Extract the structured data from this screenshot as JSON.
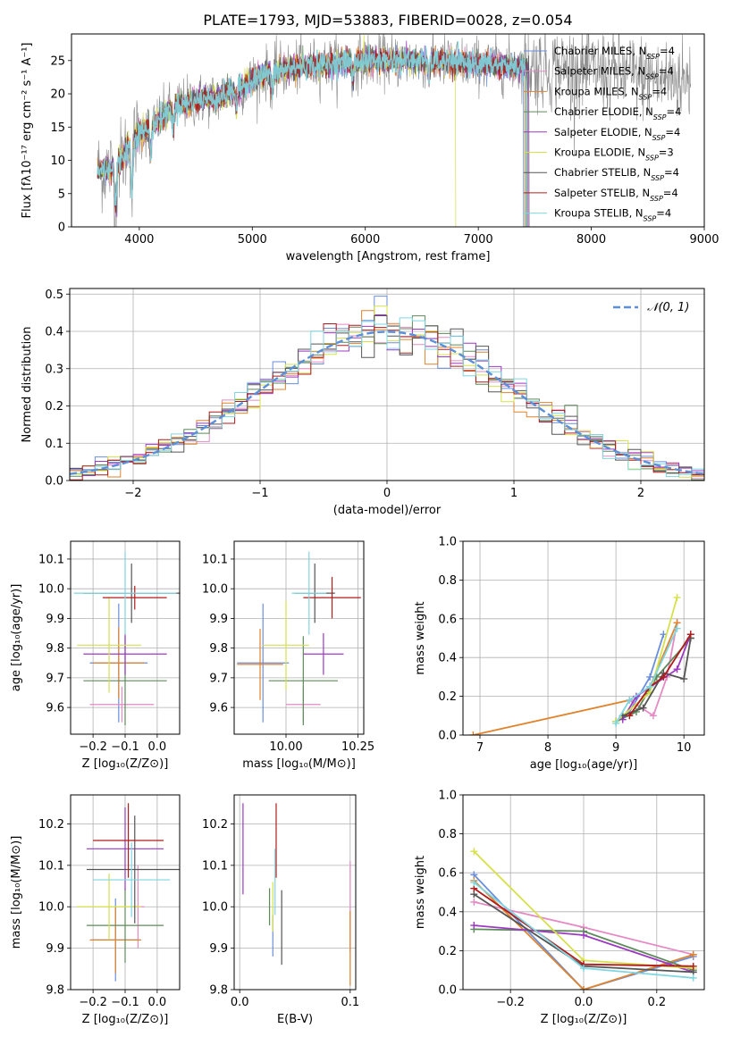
{
  "figure_title": "PLATE=1793, MJD=53883, FIBERID=0028, z=0.054",
  "models": [
    {
      "name": "Chabrier MILES",
      "nssp": "4",
      "color": "#6a8ede"
    },
    {
      "name": "Salpeter MILES",
      "nssp": "4",
      "color": "#e58ac4"
    },
    {
      "name": "Kroupa MILES",
      "nssp": "4",
      "color": "#e0832c"
    },
    {
      "name": "Chabrier ELODIE",
      "nssp": "4",
      "color": "#5d8a5a"
    },
    {
      "name": "Salpeter ELODIE",
      "nssp": "4",
      "color": "#9d39c2"
    },
    {
      "name": "Kroupa ELODIE",
      "nssp": "3",
      "color": "#d6e04a"
    },
    {
      "name": "Chabrier STELIB",
      "nssp": "4",
      "color": "#555555"
    },
    {
      "name": "Salpeter STELIB",
      "nssp": "4",
      "color": "#b01c1c"
    },
    {
      "name": "Kroupa STELIB",
      "nssp": "4",
      "color": "#7fd6e0"
    }
  ],
  "chart_data": [
    {
      "id": "spectrum",
      "type": "line",
      "xlabel": "wavelength [Angstrom, rest frame]",
      "ylabel": "Flux [fλ10⁻¹⁷ erg cm⁻² s⁻¹ A⁻¹]",
      "xlim": [
        3400,
        9000
      ],
      "ylim": [
        0,
        29
      ],
      "xticks": [
        4000,
        5000,
        6000,
        7000,
        8000,
        9000
      ],
      "yticks": [
        0,
        5,
        10,
        15,
        20,
        25
      ],
      "legend": "right",
      "data_color": "#8a8a8a",
      "wave_range": [
        3630,
        8880
      ],
      "continuum": [
        [
          3630,
          8.5
        ],
        [
          3800,
          9
        ],
        [
          3950,
          13.5
        ],
        [
          4100,
          15
        ],
        [
          4300,
          18
        ],
        [
          4500,
          19
        ],
        [
          4700,
          19.5
        ],
        [
          4900,
          21
        ],
        [
          5100,
          23
        ],
        [
          5400,
          24
        ],
        [
          5700,
          24.5
        ],
        [
          6000,
          25
        ],
        [
          6500,
          25
        ],
        [
          7000,
          24.5
        ],
        [
          7500,
          24
        ],
        [
          8000,
          23.5
        ],
        [
          8500,
          22.5
        ],
        [
          8880,
          22
        ]
      ],
      "dips": [
        [
          3790,
          6
        ],
        [
          3935,
          8
        ],
        [
          4100,
          4
        ],
        [
          4300,
          3
        ],
        [
          4861,
          2.5
        ],
        [
          5175,
          3
        ],
        [
          5890,
          2.5
        ],
        [
          6563,
          2
        ],
        [
          8600,
          2
        ]
      ]
    },
    {
      "id": "residuals",
      "type": "line",
      "xlabel": "(data-model)/error",
      "ylabel": "Normed distribution",
      "xlim": [
        -2.5,
        2.5
      ],
      "ylim": [
        0,
        0.515
      ],
      "xticks": [
        -2,
        -1,
        0,
        1,
        2
      ],
      "yticks": [
        0.0,
        0.1,
        0.2,
        0.3,
        0.4,
        0.5
      ],
      "legend": "top-right",
      "normal_label": "𝒩(0, 1)",
      "normal_color": "#5b8fd9",
      "bin_width": 0.1
    },
    {
      "id": "z_age",
      "type": "scatter",
      "xlabel": "Z [log₁₀(Z/Z⊙)]",
      "ylabel": "age  [log₁₀(age/yr)]",
      "xlim": [
        -0.27,
        0.07
      ],
      "ylim": [
        9.51,
        10.16
      ],
      "xticks": [
        -0.2,
        -0.1,
        0.0
      ],
      "yticks": [
        9.6,
        9.7,
        9.8,
        9.9,
        10.0,
        10.1
      ],
      "points": [
        {
          "m": 0,
          "x": -0.12,
          "xerr": 0.09,
          "y": 9.75,
          "yerr": 0.2
        },
        {
          "m": 1,
          "x": -0.11,
          "xerr": 0.1,
          "y": 9.61,
          "yerr": 0.06
        },
        {
          "m": 2,
          "x": -0.12,
          "xerr": 0.08,
          "y": 9.75,
          "yerr": 0.12
        },
        {
          "m": 3,
          "x": -0.1,
          "xerr": 0.13,
          "y": 9.69,
          "yerr": 0.15
        },
        {
          "m": 4,
          "x": -0.1,
          "xerr": 0.13,
          "y": 9.78,
          "yerr": 0.07
        },
        {
          "m": 5,
          "x": -0.15,
          "xerr": 0.1,
          "y": 9.81,
          "yerr": 0.16
        },
        {
          "m": 6,
          "x": -0.08,
          "xerr": 0.15,
          "y": 9.985,
          "yerr": 0.1
        },
        {
          "m": 7,
          "x": -0.07,
          "xerr": 0.1,
          "y": 9.97,
          "yerr": 0.04
        },
        {
          "m": 8,
          "x": -0.1,
          "xerr": 0.16,
          "y": 9.985,
          "yerr": 0.14
        }
      ]
    },
    {
      "id": "mass_age",
      "type": "scatter",
      "xlabel": "mass [log₁₀(M/M⊙)]",
      "ylabel": "",
      "xlim": [
        9.82,
        10.27
      ],
      "ylim": [
        9.51,
        10.16
      ],
      "xticks": [
        10.0,
        10.25
      ],
      "yticks": [
        9.6,
        9.7,
        9.8,
        9.9,
        10.0,
        10.1
      ],
      "points": [
        {
          "m": 0,
          "x": 9.92,
          "xerr": 0.09,
          "y": 9.75,
          "yerr": 0.2
        },
        {
          "m": 1,
          "x": 10.06,
          "xerr": 0.06,
          "y": 9.61,
          "yerr": 0.06
        },
        {
          "m": 2,
          "x": 9.91,
          "xerr": 0.08,
          "y": 9.745,
          "yerr": 0.12
        },
        {
          "m": 3,
          "x": 10.06,
          "xerr": 0.12,
          "y": 9.69,
          "yerr": 0.15
        },
        {
          "m": 4,
          "x": 10.13,
          "xerr": 0.07,
          "y": 9.78,
          "yerr": 0.07
        },
        {
          "m": 5,
          "x": 10.0,
          "xerr": 0.08,
          "y": 9.81,
          "yerr": 0.15
        },
        {
          "m": 6,
          "x": 10.1,
          "xerr": 0.07,
          "y": 9.985,
          "yerr": 0.1
        },
        {
          "m": 7,
          "x": 10.16,
          "xerr": 0.1,
          "y": 9.97,
          "yerr": 0.07
        },
        {
          "m": 8,
          "x": 10.08,
          "xerr": 0.06,
          "y": 9.985,
          "yerr": 0.14
        }
      ]
    },
    {
      "id": "age_weight",
      "type": "line",
      "xlabel": "age  [log₁₀(age/yr)]",
      "ylabel": "mass weight",
      "xlim": [
        6.75,
        10.3
      ],
      "ylim": [
        0,
        1.0
      ],
      "xticks": [
        7,
        8,
        9,
        10
      ],
      "yticks": [
        0.0,
        0.2,
        0.4,
        0.6,
        0.8,
        1.0
      ],
      "series": [
        {
          "m": 0,
          "x": [
            9.0,
            9.2,
            9.5,
            9.7
          ],
          "y": [
            0.07,
            0.12,
            0.3,
            0.52
          ]
        },
        {
          "m": 1,
          "x": [
            9.2,
            9.55,
            9.75,
            9.9
          ],
          "y": [
            0.18,
            0.1,
            0.3,
            0.58
          ]
        },
        {
          "m": 2,
          "x": [
            6.9,
            9.2,
            9.5,
            9.9
          ],
          "y": [
            0.0,
            0.18,
            0.25,
            0.58
          ]
        },
        {
          "m": 3,
          "x": [
            9.0,
            9.3,
            9.6,
            10.1
          ],
          "y": [
            0.07,
            0.12,
            0.3,
            0.5
          ]
        },
        {
          "m": 4,
          "x": [
            9.1,
            9.3,
            9.9,
            10.1
          ],
          "y": [
            0.08,
            0.2,
            0.34,
            0.52
          ]
        },
        {
          "m": 5,
          "x": [
            9.0,
            9.5,
            9.9
          ],
          "y": [
            0.07,
            0.22,
            0.71
          ]
        },
        {
          "m": 6,
          "x": [
            9.1,
            9.4,
            9.7,
            10.0,
            10.1
          ],
          "y": [
            0.1,
            0.14,
            0.32,
            0.29,
            0.5
          ]
        },
        {
          "m": 7,
          "x": [
            9.2,
            9.5,
            9.7,
            10.1
          ],
          "y": [
            0.1,
            0.25,
            0.3,
            0.52
          ]
        },
        {
          "m": 8,
          "x": [
            9.0,
            9.2,
            9.5,
            9.9
          ],
          "y": [
            0.06,
            0.18,
            0.25,
            0.55
          ]
        }
      ]
    },
    {
      "id": "z_mass",
      "type": "scatter",
      "xlabel": "Z [log₁₀(Z/Z⊙)]",
      "ylabel": "mass [log₁₀(M/M⊙)]",
      "xlim": [
        -0.27,
        0.07
      ],
      "ylim": [
        9.8,
        10.27
      ],
      "xticks": [
        -0.2,
        -0.1,
        0.0
      ],
      "yticks": [
        9.8,
        9.9,
        10.0,
        10.1,
        10.2
      ],
      "points": [
        {
          "m": 0,
          "x": -0.13,
          "xerr": 0.07,
          "y": 9.92,
          "yerr": 0.1
        },
        {
          "m": 1,
          "x": -0.06,
          "xerr": 0.02,
          "y": 10.0,
          "yerr": 0.1
        },
        {
          "m": 2,
          "x": -0.13,
          "xerr": 0.08,
          "y": 9.92,
          "yerr": 0.08
        },
        {
          "m": 3,
          "x": -0.1,
          "xerr": 0.12,
          "y": 9.955,
          "yerr": 0.09
        },
        {
          "m": 4,
          "x": -0.1,
          "xerr": 0.12,
          "y": 10.14,
          "yerr": 0.1
        },
        {
          "m": 5,
          "x": -0.15,
          "xerr": 0.1,
          "y": 10.0,
          "yerr": 0.08
        },
        {
          "m": 6,
          "x": -0.07,
          "xerr": 0.15,
          "y": 10.09,
          "yerr": 0.13
        },
        {
          "m": 7,
          "x": -0.09,
          "xerr": 0.11,
          "y": 10.16,
          "yerr": 0.09
        },
        {
          "m": 8,
          "x": -0.08,
          "xerr": 0.12,
          "y": 10.065,
          "yerr": 0.09
        }
      ]
    },
    {
      "id": "ebv_mass",
      "type": "scatter",
      "xlabel": "E(B-V)",
      "ylabel": "",
      "xlim": [
        -0.005,
        0.105
      ],
      "ylim": [
        9.8,
        10.27
      ],
      "xticks": [
        0.0,
        0.1
      ],
      "yticks": [
        9.8,
        9.9,
        10.0,
        10.1,
        10.2
      ],
      "points": [
        {
          "m": 0,
          "x": 0.03,
          "y": 9.93,
          "yerr": 0.05
        },
        {
          "m": 1,
          "x": 0.1,
          "y": 10.0,
          "yerr": 0.11
        },
        {
          "m": 2,
          "x": 0.1,
          "y": 9.9,
          "yerr": 0.09
        },
        {
          "m": 3,
          "x": 0.027,
          "y": 10.0,
          "yerr": 0.045
        },
        {
          "m": 4,
          "x": 0.003,
          "y": 10.14,
          "yerr": 0.11
        },
        {
          "m": 5,
          "x": 0.03,
          "y": 10.0,
          "yerr": 0.06
        },
        {
          "m": 6,
          "x": 0.038,
          "y": 9.95,
          "yerr": 0.09
        },
        {
          "m": 7,
          "x": 0.033,
          "y": 10.16,
          "yerr": 0.09
        },
        {
          "m": 8,
          "x": 0.032,
          "y": 10.06,
          "yerr": 0.08
        }
      ]
    },
    {
      "id": "z_weight",
      "type": "line",
      "xlabel": "Z [log₁₀(Z/Z⊙)]",
      "ylabel": "mass weight",
      "xlim": [
        -0.33,
        0.33
      ],
      "ylim": [
        0,
        1.0
      ],
      "xticks": [
        -0.2,
        0.0,
        0.2
      ],
      "yticks": [
        0.0,
        0.2,
        0.4,
        0.6,
        0.8,
        1.0
      ],
      "series": [
        {
          "m": 0,
          "x": [
            -0.3,
            0.0,
            0.3
          ],
          "y": [
            0.59,
            0.0,
            0.17
          ]
        },
        {
          "m": 1,
          "x": [
            -0.3,
            0.0,
            0.3
          ],
          "y": [
            0.45,
            0.32,
            0.18
          ]
        },
        {
          "m": 2,
          "x": [
            -0.3,
            0.0,
            0.3
          ],
          "y": [
            0.56,
            0.0,
            0.18
          ]
        },
        {
          "m": 3,
          "x": [
            -0.3,
            0.0,
            0.3
          ],
          "y": [
            0.31,
            0.3,
            0.1
          ]
        },
        {
          "m": 4,
          "x": [
            -0.3,
            0.0,
            0.3
          ],
          "y": [
            0.33,
            0.28,
            0.09
          ]
        },
        {
          "m": 5,
          "x": [
            -0.3,
            0.0,
            0.3
          ],
          "y": [
            0.71,
            0.15,
            0.11
          ]
        },
        {
          "m": 6,
          "x": [
            -0.3,
            0.0,
            0.3
          ],
          "y": [
            0.49,
            0.12,
            0.09
          ]
        },
        {
          "m": 7,
          "x": [
            -0.3,
            0.0,
            0.3
          ],
          "y": [
            0.52,
            0.13,
            0.12
          ]
        },
        {
          "m": 8,
          "x": [
            -0.3,
            0.0,
            0.3
          ],
          "y": [
            0.55,
            0.11,
            0.06
          ]
        }
      ]
    }
  ]
}
